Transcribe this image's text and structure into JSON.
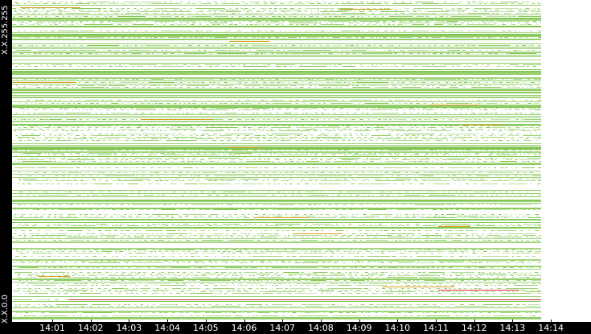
{
  "y_axis": {
    "top_label": "X.X.255.255",
    "bottom_label": "X.X.0.0"
  },
  "x_axis": {
    "ticks": [
      "14:01",
      "14:02",
      "14:03",
      "14:04",
      "14:05",
      "14:06",
      "14:07",
      "14:08",
      "14:09",
      "14:10",
      "14:11",
      "14:12",
      "14:13",
      "14:14"
    ]
  },
  "colors": {
    "background": "#ffffff",
    "axis_background": "#000000",
    "axis_text": "#ffffff",
    "low_activity": "#7cc44a",
    "medium_activity": "#d8a020",
    "high_activity": "#d83030"
  }
}
